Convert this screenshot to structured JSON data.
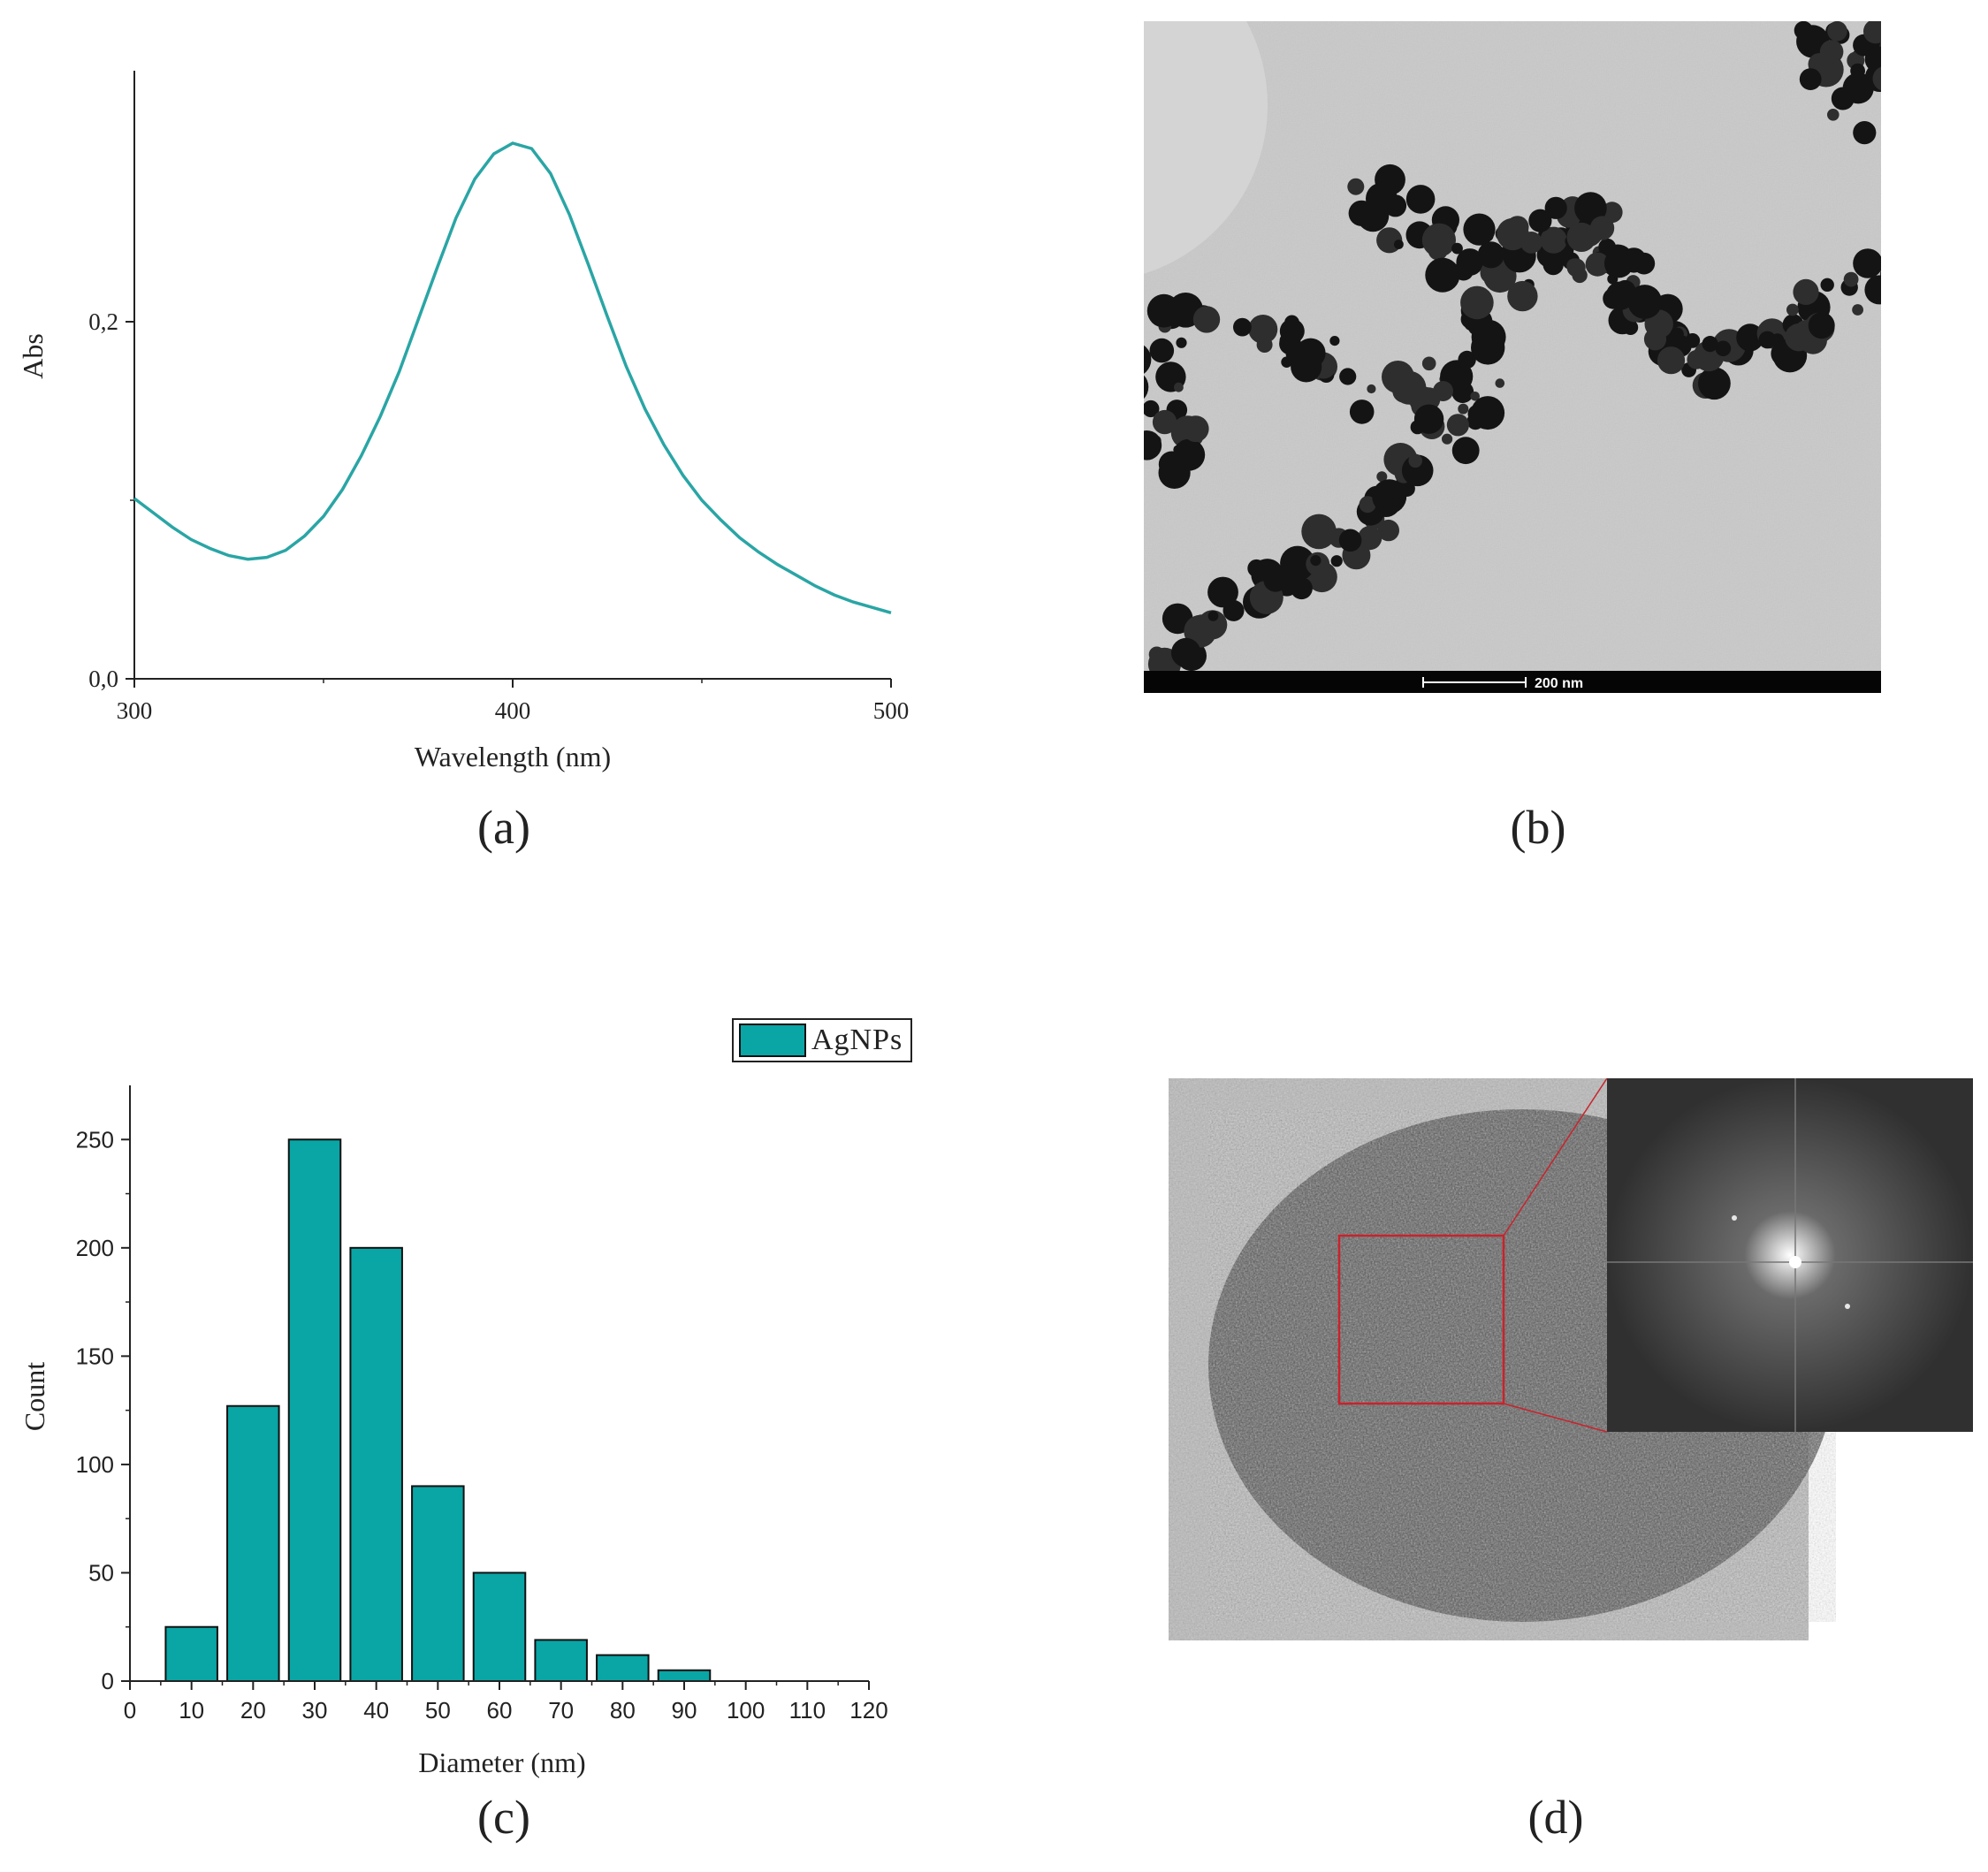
{
  "panel_a": {
    "caption": "(a)",
    "chart_data": {
      "type": "line",
      "xlabel": "Wavelength (nm)",
      "ylabel": "Abs",
      "xlim": [
        300,
        500
      ],
      "ylim": [
        0,
        0.3
      ],
      "x_ticks": [
        300,
        400,
        500
      ],
      "x_tick_labels": [
        "300",
        "400",
        "500"
      ],
      "y_ticks": [
        0,
        0.2
      ],
      "y_tick_labels": [
        "0,0",
        "0,2"
      ],
      "line_color": "#2aa5a5",
      "series": [
        {
          "x": [
            300,
            305,
            310,
            315,
            320,
            325,
            330,
            335,
            340,
            345,
            350,
            355,
            360,
            365,
            370,
            375,
            380,
            385,
            390,
            395,
            400,
            405,
            410,
            415,
            420,
            425,
            430,
            435,
            440,
            445,
            450,
            455,
            460,
            465,
            470,
            475,
            480,
            485,
            490,
            495,
            500
          ],
          "y": [
            0.101,
            0.093,
            0.085,
            0.078,
            0.073,
            0.069,
            0.067,
            0.068,
            0.072,
            0.08,
            0.091,
            0.106,
            0.125,
            0.147,
            0.172,
            0.201,
            0.23,
            0.258,
            0.28,
            0.294,
            0.3,
            0.297,
            0.283,
            0.26,
            0.232,
            0.203,
            0.175,
            0.151,
            0.131,
            0.114,
            0.1,
            0.089,
            0.079,
            0.071,
            0.064,
            0.058,
            0.052,
            0.047,
            0.043,
            0.04,
            0.037
          ]
        }
      ]
    }
  },
  "panel_b": {
    "caption": "(b)",
    "scale_bar_label": "200 nm"
  },
  "panel_c": {
    "caption": "(c)",
    "chart_data": {
      "type": "bar",
      "xlabel": "Diameter (nm)",
      "ylabel": "Count",
      "xlim": [
        0,
        120
      ],
      "ylim": [
        0,
        275
      ],
      "x_ticks": [
        0,
        10,
        20,
        30,
        40,
        50,
        60,
        70,
        80,
        90,
        100,
        110,
        120
      ],
      "y_ticks": [
        0,
        50,
        100,
        150,
        200,
        250
      ],
      "bar_color": "#0aa5a5",
      "legend_position": "top-right",
      "series": [
        {
          "name": "AgNPs",
          "x": [
            10,
            20,
            30,
            40,
            50,
            60,
            70,
            80,
            90
          ],
          "values": [
            25,
            127,
            250,
            200,
            90,
            50,
            19,
            12,
            5
          ]
        }
      ]
    }
  },
  "panel_d": {
    "caption": "(d)"
  }
}
